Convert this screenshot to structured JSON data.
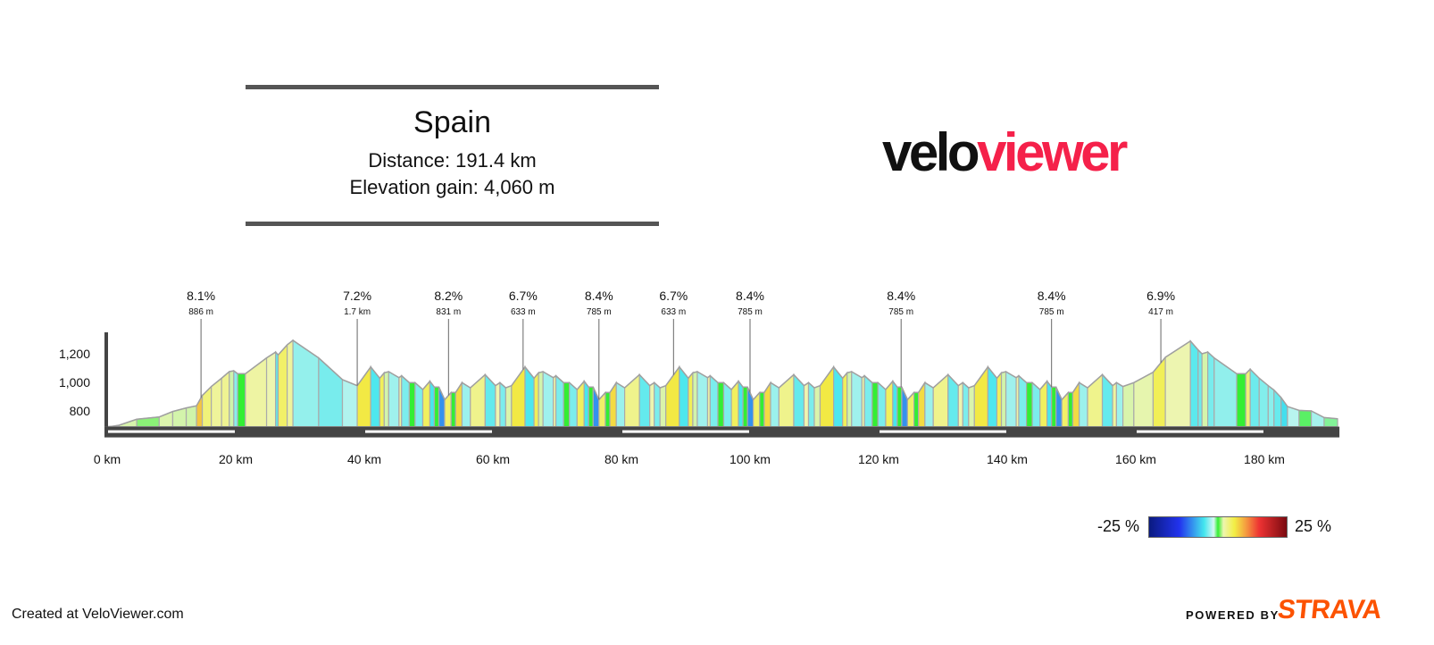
{
  "header": {
    "title": "Spain",
    "distance": "Distance: 191.4 km",
    "elevation_gain": "Elevation gain: 4,060 m"
  },
  "logo": {
    "part1": "velo",
    "part2": "viewer",
    "colors": {
      "velo": "#111111",
      "viewer": "#f5214a"
    }
  },
  "legend": {
    "min_label": "-25 %",
    "max_label": "25 %"
  },
  "footer": {
    "created": "Created at VeloViewer.com",
    "powered_by": "POWERED BY",
    "strava": "STRAVA",
    "strava_color": "#fc5200"
  },
  "chart_data": {
    "type": "area",
    "title": "",
    "xlabel": "",
    "ylabel": "",
    "xlim": [
      0,
      191.4
    ],
    "ylim": [
      690,
      1350
    ],
    "x_ticks": [
      0,
      20,
      40,
      60,
      80,
      100,
      120,
      140,
      160,
      180
    ],
    "x_tick_labels": [
      "0 km",
      "20 km",
      "40 km",
      "60 km",
      "80 km",
      "100 km",
      "120 km",
      "140 km",
      "160 km",
      "180 km"
    ],
    "y_ticks": [
      800,
      1000,
      1200
    ],
    "y_tick_labels": [
      "800",
      "1,000",
      "1,200"
    ],
    "color_scale": {
      "min": -25,
      "max": 25,
      "unit": "%"
    },
    "climbs": [
      {
        "km": 14.6,
        "gradient": "8.1%",
        "length": "886 m"
      },
      {
        "km": 38.9,
        "gradient": "7.2%",
        "length": "1.7 km"
      },
      {
        "km": 53.1,
        "gradient": "8.2%",
        "length": "831 m"
      },
      {
        "km": 64.7,
        "gradient": "6.7%",
        "length": "633 m"
      },
      {
        "km": 76.5,
        "gradient": "8.4%",
        "length": "785 m"
      },
      {
        "km": 88.1,
        "gradient": "6.7%",
        "length": "633 m"
      },
      {
        "km": 100.0,
        "gradient": "8.4%",
        "length": "785 m"
      },
      {
        "km": 123.5,
        "gradient": "8.4%",
        "length": "785 m"
      },
      {
        "km": 146.9,
        "gradient": "8.4%",
        "length": "785 m"
      },
      {
        "km": 163.9,
        "gradient": "6.9%",
        "length": "417 m"
      }
    ],
    "profile": [
      [
        0,
        690
      ],
      [
        0.7,
        692
      ],
      [
        1.85,
        700
      ],
      [
        4.6,
        742
      ],
      [
        8.1,
        758
      ],
      [
        10.2,
        796
      ],
      [
        12.3,
        821
      ],
      [
        13.9,
        836
      ],
      [
        14.8,
        908
      ],
      [
        16.2,
        971
      ],
      [
        17.8,
        1029
      ],
      [
        19.0,
        1075
      ],
      [
        19.7,
        1081
      ],
      [
        20.3,
        1060
      ],
      [
        21.5,
        1060
      ],
      [
        24.8,
        1171
      ],
      [
        26.2,
        1212
      ],
      [
        26.6,
        1192
      ],
      [
        28.0,
        1262
      ],
      [
        28.9,
        1294
      ],
      [
        32.9,
        1171
      ],
      [
        36.6,
        1019
      ],
      [
        38.9,
        977
      ],
      [
        41.0,
        1108
      ],
      [
        42.4,
        1029
      ],
      [
        43.1,
        1067
      ],
      [
        43.8,
        1075
      ],
      [
        45.4,
        1033
      ],
      [
        45.8,
        1046
      ],
      [
        47.0,
        998
      ],
      [
        47.9,
        998
      ],
      [
        49.1,
        950
      ],
      [
        50.2,
        1008
      ],
      [
        50.9,
        967
      ],
      [
        51.6,
        967
      ],
      [
        52.5,
        879
      ],
      [
        53.5,
        929
      ],
      [
        54.2,
        929
      ],
      [
        55.2,
        998
      ],
      [
        56.5,
        962
      ],
      [
        58.8,
        1054
      ],
      [
        60.4,
        977
      ],
      [
        61.1,
        998
      ],
      [
        62.0,
        962
      ],
      [
        62.9,
        977
      ],
      [
        65.0,
        1108
      ],
      [
        66.4,
        1029
      ],
      [
        67.1,
        1067
      ],
      [
        67.8,
        1075
      ],
      [
        69.4,
        1033
      ],
      [
        69.8,
        1046
      ],
      [
        71.0,
        998
      ],
      [
        71.9,
        998
      ],
      [
        73.1,
        950
      ],
      [
        74.2,
        1008
      ],
      [
        74.9,
        967
      ],
      [
        75.6,
        967
      ],
      [
        76.5,
        879
      ],
      [
        77.5,
        929
      ],
      [
        78.2,
        929
      ],
      [
        79.2,
        998
      ],
      [
        80.5,
        962
      ],
      [
        82.8,
        1054
      ],
      [
        84.4,
        977
      ],
      [
        85.1,
        998
      ],
      [
        86.0,
        962
      ],
      [
        86.9,
        977
      ],
      [
        89.0,
        1108
      ],
      [
        90.4,
        1029
      ],
      [
        91.1,
        1067
      ],
      [
        91.8,
        1075
      ],
      [
        93.4,
        1033
      ],
      [
        93.8,
        1046
      ],
      [
        95.0,
        998
      ],
      [
        95.9,
        998
      ],
      [
        97.1,
        950
      ],
      [
        98.2,
        1008
      ],
      [
        98.9,
        967
      ],
      [
        99.6,
        967
      ],
      [
        100.5,
        879
      ],
      [
        101.5,
        929
      ],
      [
        102.2,
        929
      ],
      [
        103.2,
        998
      ],
      [
        104.5,
        962
      ],
      [
        106.8,
        1054
      ],
      [
        108.4,
        977
      ],
      [
        109.1,
        998
      ],
      [
        110.0,
        962
      ],
      [
        110.9,
        977
      ],
      [
        113.0,
        1108
      ],
      [
        114.4,
        1029
      ],
      [
        115.1,
        1067
      ],
      [
        115.8,
        1075
      ],
      [
        117.4,
        1033
      ],
      [
        117.8,
        1046
      ],
      [
        119.0,
        998
      ],
      [
        119.9,
        998
      ],
      [
        121.1,
        950
      ],
      [
        122.2,
        1008
      ],
      [
        122.9,
        967
      ],
      [
        123.6,
        967
      ],
      [
        124.5,
        879
      ],
      [
        125.5,
        929
      ],
      [
        126.2,
        929
      ],
      [
        127.2,
        998
      ],
      [
        128.5,
        962
      ],
      [
        130.8,
        1054
      ],
      [
        132.4,
        977
      ],
      [
        133.1,
        998
      ],
      [
        134.0,
        962
      ],
      [
        134.9,
        977
      ],
      [
        137.0,
        1108
      ],
      [
        138.4,
        1029
      ],
      [
        139.1,
        1067
      ],
      [
        139.8,
        1075
      ],
      [
        141.4,
        1033
      ],
      [
        141.8,
        1046
      ],
      [
        143.0,
        998
      ],
      [
        143.9,
        998
      ],
      [
        145.1,
        950
      ],
      [
        146.2,
        1008
      ],
      [
        146.9,
        967
      ],
      [
        147.6,
        967
      ],
      [
        148.5,
        879
      ],
      [
        149.5,
        929
      ],
      [
        150.2,
        929
      ],
      [
        151.2,
        998
      ],
      [
        152.5,
        962
      ],
      [
        154.8,
        1054
      ],
      [
        156.4,
        977
      ],
      [
        157.0,
        998
      ],
      [
        158.0,
        971
      ],
      [
        159.7,
        998
      ],
      [
        162.7,
        1071
      ],
      [
        164.6,
        1175
      ],
      [
        168.5,
        1289
      ],
      [
        169.7,
        1227
      ],
      [
        170.3,
        1200
      ],
      [
        171.2,
        1212
      ],
      [
        172.2,
        1171
      ],
      [
        175.7,
        1060
      ],
      [
        177.1,
        1060
      ],
      [
        177.8,
        1092
      ],
      [
        179.2,
        1029
      ],
      [
        180.6,
        977
      ],
      [
        181.5,
        946
      ],
      [
        182.6,
        894
      ],
      [
        183.6,
        831
      ],
      [
        185.4,
        804
      ],
      [
        187.3,
        800
      ],
      [
        189.3,
        754
      ],
      [
        191.4,
        745
      ]
    ]
  }
}
